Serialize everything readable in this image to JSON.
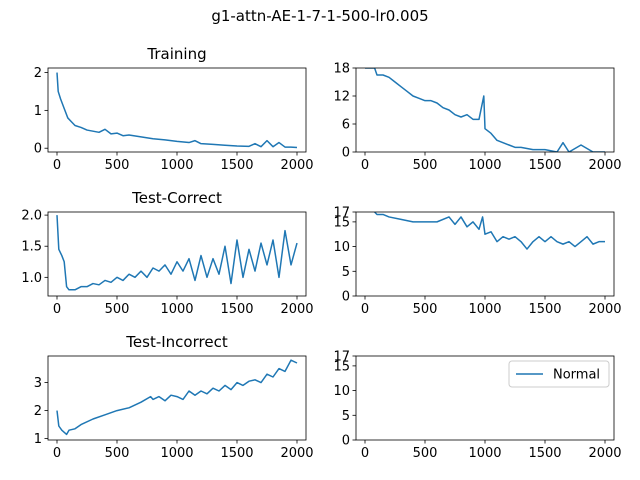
{
  "figure": {
    "suptitle": "g1-attn-AE-1-7-1-500-lr0.005"
  },
  "chart_data": [
    {
      "id": "training-loss",
      "type": "line",
      "title": "Training",
      "xlim": [
        -75,
        2075
      ],
      "ylim": [
        -0.1,
        2.12
      ],
      "xticks": [
        0,
        500,
        1000,
        1500,
        2000
      ],
      "yticks": [
        0,
        1,
        2
      ],
      "color": "#1f77b4",
      "x": [
        0,
        10,
        30,
        60,
        90,
        120,
        150,
        200,
        250,
        300,
        350,
        400,
        450,
        500,
        550,
        600,
        700,
        800,
        900,
        1000,
        1100,
        1150,
        1200,
        1300,
        1400,
        1500,
        1600,
        1650,
        1700,
        1750,
        1800,
        1850,
        1900,
        1950,
        2000
      ],
      "y": [
        2.0,
        1.5,
        1.3,
        1.05,
        0.8,
        0.7,
        0.6,
        0.55,
        0.48,
        0.45,
        0.42,
        0.5,
        0.38,
        0.4,
        0.33,
        0.35,
        0.3,
        0.25,
        0.22,
        0.18,
        0.15,
        0.2,
        0.12,
        0.1,
        0.08,
        0.06,
        0.05,
        0.12,
        0.04,
        0.2,
        0.04,
        0.15,
        0.03,
        0.03,
        0.02
      ]
    },
    {
      "id": "training-aux",
      "type": "line",
      "title": "",
      "xlim": [
        -75,
        2075
      ],
      "ylim": [
        0,
        18
      ],
      "xticks": [
        0,
        500,
        1000,
        1500,
        2000
      ],
      "yticks": [
        0,
        6,
        12,
        18
      ],
      "color": "#1f77b4",
      "x": [
        0,
        80,
        100,
        150,
        200,
        250,
        300,
        350,
        400,
        450,
        500,
        550,
        600,
        650,
        700,
        750,
        800,
        850,
        900,
        950,
        990,
        1000,
        1050,
        1100,
        1150,
        1200,
        1250,
        1300,
        1400,
        1500,
        1600,
        1650,
        1700,
        1800,
        1900,
        2000
      ],
      "y": [
        18,
        18,
        16.5,
        16.5,
        16,
        15,
        14,
        13,
        12,
        11.5,
        11,
        11,
        10.5,
        9.5,
        9,
        8,
        7.5,
        8,
        7,
        7,
        12,
        5,
        4,
        2.5,
        2,
        1.5,
        1,
        1,
        0.5,
        0.5,
        0,
        2,
        0,
        1.5,
        0,
        0
      ]
    },
    {
      "id": "test-correct-loss",
      "type": "line",
      "title": "Test-Correct",
      "xlim": [
        -75,
        2075
      ],
      "ylim": [
        0.7,
        2.05
      ],
      "xticks": [
        0,
        500,
        1000,
        1500,
        2000
      ],
      "yticks": [
        1.0,
        1.5,
        2.0
      ],
      "color": "#1f77b4",
      "x": [
        0,
        15,
        40,
        60,
        80,
        100,
        150,
        200,
        250,
        300,
        350,
        400,
        450,
        500,
        550,
        600,
        650,
        700,
        750,
        800,
        850,
        900,
        950,
        1000,
        1050,
        1100,
        1150,
        1200,
        1250,
        1300,
        1350,
        1400,
        1450,
        1500,
        1550,
        1600,
        1650,
        1700,
        1750,
        1800,
        1850,
        1900,
        1950,
        2000
      ],
      "y": [
        2.0,
        1.45,
        1.35,
        1.25,
        0.85,
        0.8,
        0.8,
        0.85,
        0.85,
        0.9,
        0.88,
        0.95,
        0.92,
        1.0,
        0.95,
        1.05,
        1.0,
        1.1,
        1.0,
        1.15,
        1.1,
        1.2,
        1.05,
        1.25,
        1.1,
        1.3,
        0.95,
        1.35,
        1.0,
        1.3,
        1.05,
        1.5,
        0.9,
        1.6,
        1.0,
        1.45,
        1.1,
        1.55,
        1.2,
        1.6,
        1.0,
        1.75,
        1.2,
        1.55
      ]
    },
    {
      "id": "test-correct-aux",
      "type": "line",
      "title": "",
      "xlim": [
        -75,
        2075
      ],
      "ylim": [
        0,
        17
      ],
      "xticks": [
        0,
        500,
        1000,
        1500,
        2000
      ],
      "yticks": [
        0,
        5,
        10,
        15,
        17
      ],
      "color": "#1f77b4",
      "x": [
        80,
        100,
        150,
        200,
        300,
        400,
        500,
        600,
        700,
        750,
        800,
        850,
        900,
        950,
        980,
        1000,
        1050,
        1100,
        1150,
        1200,
        1250,
        1300,
        1350,
        1400,
        1450,
        1500,
        1550,
        1600,
        1650,
        1700,
        1750,
        1800,
        1850,
        1900,
        1950,
        2000
      ],
      "y": [
        17,
        16.5,
        16.5,
        16,
        15.5,
        15,
        15,
        15,
        16,
        14.5,
        16,
        14,
        15,
        13.5,
        16,
        12.5,
        13,
        11,
        12,
        11.5,
        12,
        11,
        9.5,
        11,
        12,
        11,
        12,
        11,
        10.5,
        11,
        10,
        11,
        12,
        10.5,
        11,
        11
      ]
    },
    {
      "id": "test-incorrect-loss",
      "type": "line",
      "title": "Test-Incorrect",
      "xlim": [
        -75,
        2075
      ],
      "ylim": [
        0.95,
        3.95
      ],
      "xticks": [
        0,
        500,
        1000,
        1500,
        2000
      ],
      "yticks": [
        1,
        2,
        3
      ],
      "color": "#1f77b4",
      "x": [
        0,
        15,
        40,
        80,
        100,
        150,
        200,
        300,
        400,
        500,
        600,
        700,
        780,
        800,
        850,
        900,
        950,
        1000,
        1050,
        1100,
        1150,
        1200,
        1250,
        1300,
        1350,
        1400,
        1450,
        1500,
        1550,
        1600,
        1650,
        1700,
        1750,
        1800,
        1850,
        1900,
        1950,
        2000
      ],
      "y": [
        2.0,
        1.45,
        1.3,
        1.15,
        1.3,
        1.35,
        1.5,
        1.7,
        1.85,
        2.0,
        2.1,
        2.3,
        2.5,
        2.4,
        2.5,
        2.35,
        2.55,
        2.5,
        2.4,
        2.7,
        2.55,
        2.7,
        2.6,
        2.8,
        2.7,
        2.9,
        2.75,
        3.0,
        2.9,
        3.05,
        3.1,
        3.0,
        3.3,
        3.2,
        3.5,
        3.4,
        3.8,
        3.7
      ]
    },
    {
      "id": "test-incorrect-aux",
      "type": "line",
      "title": "",
      "xlim": [
        -75,
        2075
      ],
      "ylim": [
        0,
        17
      ],
      "xticks": [
        0,
        500,
        1000,
        1500,
        2000
      ],
      "yticks": [
        0,
        5,
        10,
        15,
        17
      ],
      "color": "#1f77b4",
      "x": [],
      "y": [],
      "legend": {
        "entries": [
          "Normal"
        ],
        "placement": "upper right"
      }
    }
  ]
}
